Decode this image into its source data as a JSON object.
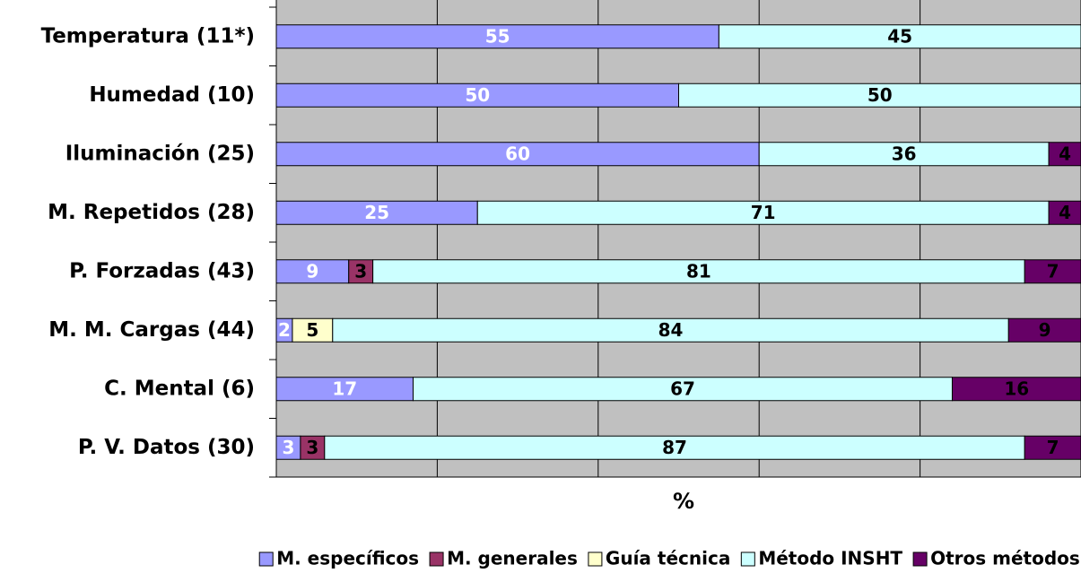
{
  "chart_data": {
    "type": "stacked-bar",
    "orientation": "horizontal",
    "x_label": "%",
    "categories": [
      "Temperatura (11*)",
      "Humedad (10)",
      "Iluminación (25)",
      "M. Repetidos (28)",
      "P. Forzadas (43)",
      "M. M. Cargas (44)",
      "C. Mental (6)",
      "P. V. Datos (30)"
    ],
    "series": [
      {
        "name": "M. específicos",
        "color": "#9999ff",
        "label_color": "#ffffff",
        "values": [
          55,
          50,
          60,
          25,
          9,
          2,
          17,
          3
        ]
      },
      {
        "name": "M. generales",
        "color": "#993366",
        "label_color": "#000000",
        "values": [
          null,
          null,
          null,
          null,
          3,
          null,
          null,
          3
        ]
      },
      {
        "name": "Guía técnica",
        "color": "#ffffcc",
        "label_color": "#000000",
        "values": [
          null,
          null,
          null,
          null,
          null,
          5,
          null,
          null
        ]
      },
      {
        "name": "Método INSHT",
        "color": "#ccffff",
        "label_color": "#000000",
        "values": [
          45,
          50,
          36,
          71,
          81,
          84,
          67,
          87
        ]
      },
      {
        "name": "Otros métodos",
        "color": "#660066",
        "label_color": "#000000",
        "values": [
          null,
          null,
          4,
          4,
          7,
          9,
          16,
          7
        ]
      }
    ],
    "xlim": [
      0,
      100
    ],
    "xticks": [
      0,
      20,
      40,
      60,
      80,
      100
    ],
    "grid": true,
    "plot_background": "#c0c0c0",
    "legend": "bottom"
  }
}
